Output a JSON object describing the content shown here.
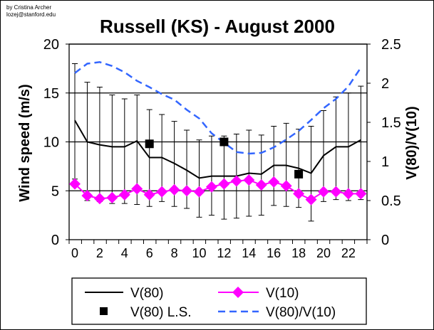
{
  "credit": [
    "by Cristina Archer",
    "lozej@stanford.edu"
  ],
  "chart_data": {
    "type": "line",
    "title": "Russell (KS) - August 2000",
    "xlabel": "",
    "ylabel": "Wind speed (m/s)",
    "y2label": "V(80)/V(10)",
    "ylim": [
      0,
      20
    ],
    "y2lim": [
      0,
      2.5
    ],
    "xlim": [
      0,
      23
    ],
    "yticks": [
      0,
      5,
      10,
      15,
      20
    ],
    "y2ticks": [
      "0",
      "0.5",
      "1",
      "1.5",
      "2",
      "2.5"
    ],
    "xticks": [
      0,
      2,
      4,
      6,
      8,
      10,
      12,
      14,
      16,
      18,
      20,
      22
    ],
    "grid": "horizontal",
    "legend": "bottom",
    "x": [
      0,
      1,
      2,
      3,
      4,
      5,
      6,
      7,
      8,
      9,
      10,
      11,
      12,
      13,
      14,
      15,
      16,
      17,
      18,
      19,
      20,
      21,
      22,
      23
    ],
    "series": [
      {
        "name": "V(80)",
        "axis": "left",
        "color": "#000000",
        "values": [
          12.2,
          10.0,
          9.7,
          9.5,
          9.5,
          10.1,
          8.4,
          8.4,
          7.8,
          7.1,
          6.3,
          6.5,
          6.5,
          6.5,
          6.8,
          6.7,
          7.6,
          7.6,
          7.3,
          6.8,
          8.6,
          9.5,
          9.5,
          10.2
        ],
        "error_upper": [
          18.0,
          16.1,
          15.6,
          14.8,
          14.4,
          14.8,
          13.3,
          12.8,
          12.1,
          11.2,
          10.2,
          10.6,
          10.6,
          10.8,
          11.2,
          10.7,
          11.6,
          11.9,
          11.3,
          11.6,
          13.2,
          14.6,
          15.0,
          15.7
        ],
        "error_lower": [
          6.2,
          4.0,
          3.9,
          3.7,
          3.7,
          3.6,
          3.4,
          3.9,
          3.4,
          3.2,
          2.3,
          2.5,
          2.1,
          2.2,
          2.4,
          2.5,
          3.5,
          3.4,
          3.3,
          1.9,
          3.9,
          4.1,
          4.0,
          4.1
        ]
      },
      {
        "name": "V(10)",
        "axis": "left",
        "color": "#ff00ff",
        "marker": "diamond",
        "values": [
          5.7,
          4.5,
          4.2,
          4.3,
          4.6,
          5.2,
          4.6,
          4.9,
          5.1,
          5.0,
          4.9,
          5.4,
          5.7,
          6.0,
          6.1,
          5.6,
          5.9,
          5.5,
          4.7,
          4.1,
          4.9,
          4.9,
          4.7,
          4.7
        ]
      },
      {
        "name": "V(80) L.S.",
        "axis": "left",
        "color": "#000000",
        "marker": "square",
        "x": [
          6,
          12,
          18
        ],
        "values": [
          9.8,
          10.0,
          6.7
        ]
      },
      {
        "name": "V(80)/V(10)",
        "axis": "right",
        "color": "#3366ff",
        "style": "dashed",
        "values": [
          2.13,
          2.25,
          2.27,
          2.22,
          2.14,
          2.03,
          1.95,
          1.86,
          1.79,
          1.66,
          1.55,
          1.36,
          1.24,
          1.12,
          1.1,
          1.11,
          1.18,
          1.28,
          1.39,
          1.53,
          1.68,
          1.8,
          1.96,
          2.2
        ]
      }
    ]
  }
}
